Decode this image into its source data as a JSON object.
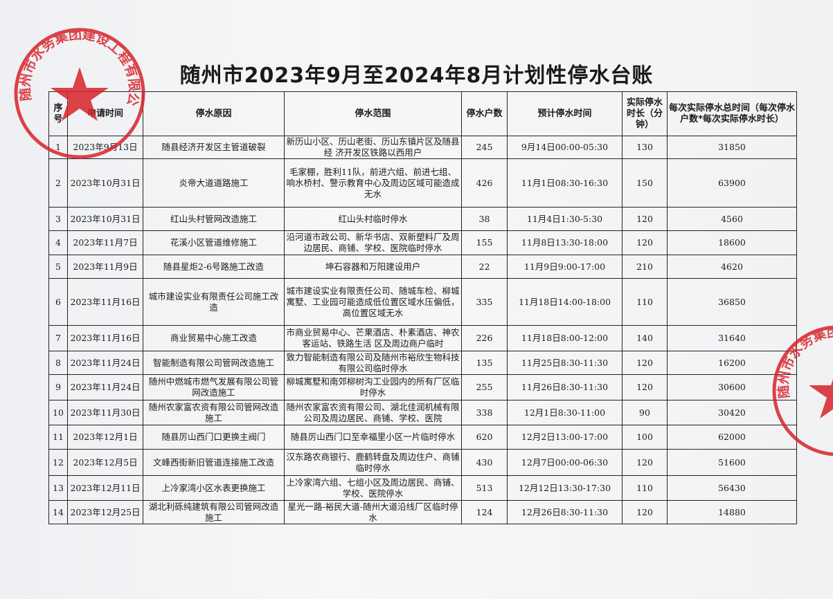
{
  "title": "随州市2023年9月至2024年8月计划性停水台账",
  "headers": [
    "序号",
    "申请时间",
    "停水原因",
    "停水范围",
    "停水户数",
    "预计停水时间",
    "实际停水时长（分钟）",
    "每次实际停水总时间（每次停水户数*每次实际停水时长）"
  ],
  "rows": [
    {
      "no": "1",
      "date": "2023年9月13日",
      "reason": "随县经济开发区主管道破裂",
      "range": "新历山小区、历山老街、历山东镇片区及随县经 济开发区铁路以西用户",
      "households": "245",
      "time": "9月14日00:00-05:30",
      "duration": "130",
      "total": "31850"
    },
    {
      "no": "2",
      "date": "2023年10月31日",
      "reason": "炎帝大道道路施工",
      "range": "毛家棚，胜利11队，前进六组、前进七组、响水桥村、警示教育中心及周边区域可能造成无水",
      "households": "426",
      "time": "11月1日08:30-16:30",
      "duration": "150",
      "total": "63900"
    },
    {
      "no": "3",
      "date": "2023年10月31日",
      "reason": "红山头村管网改造施工",
      "range": "红山头村临时停水",
      "households": "38",
      "time": "11月4日1:30-5:30",
      "duration": "120",
      "total": "4560"
    },
    {
      "no": "4",
      "date": "2023年11月7日",
      "reason": "花溪小区管道维修施工",
      "range": "沿河道市政公司、新华书店、双新塑料厂及周边居民、商铺、学校、医院临时停水",
      "households": "155",
      "time": "11月8日13:30-18:00",
      "duration": "120",
      "total": "18600"
    },
    {
      "no": "5",
      "date": "2023年11月9日",
      "reason": "随县星炬2-6号路施工改造",
      "range": "坤石容器和万阳建设用户",
      "households": "22",
      "time": "11月9日9:00-17:00",
      "duration": "210",
      "total": "4620"
    },
    {
      "no": "6",
      "date": "2023年11月16日",
      "reason": "城市建设实业有限责任公司施工改造",
      "range": "城市建设实业有限责任公司、随城车检、柳城寓墅、工业园可能造成低位置区域水压偏低，高位置区域无水",
      "households": "335",
      "time": "11月18日14:00-18:00",
      "duration": "110",
      "total": "36850"
    },
    {
      "no": "7",
      "date": "2023年11月16日",
      "reason": "商业贸易中心施工改造",
      "range": "市商业贸易中心、芒果酒店、朴素酒店、神农客运站、铁路生活 区及周边商户临时",
      "households": "226",
      "time": "11月18日8:00-12:00",
      "duration": "140",
      "total": "31640"
    },
    {
      "no": "8",
      "date": "2023年11月24日",
      "reason": "智能制造有限公司管网改造施工",
      "range": "致力智能制造有限公司及随州市裕欣生物科技有限公司临时停水",
      "households": "135",
      "time": "11月25日8:30-11:30",
      "duration": "120",
      "total": "16200"
    },
    {
      "no": "9",
      "date": "2023年11月24日",
      "reason": "随州中燃城市燃气发展有限公司管网改造施工",
      "range": "柳城寓墅和南郊柳树沟工业园内的所有厂区临时停水",
      "households": "255",
      "time": "11月26日8:30-11:30",
      "duration": "120",
      "total": "30600"
    },
    {
      "no": "10",
      "date": "2023年11月30日",
      "reason": "随州农家富农资有限公司管网改造施工",
      "range": "随州农家富农资有限公司、湖北佳润机械有限公司及周边居民、商铺、学校、医院",
      "households": "338",
      "time": "12月1日8:30-11:00",
      "duration": "90",
      "total": "30420"
    },
    {
      "no": "11",
      "date": "2023年12月1日",
      "reason": "随县厉山西门口更换主阀门",
      "range": "随县厉山西门口至幸福里小区一片临时停水",
      "households": "620",
      "time": "12月2日13:00-17:00",
      "duration": "100",
      "total": "62000"
    },
    {
      "no": "12",
      "date": "2023年12月5日",
      "reason": "文峰西街新旧管道连接施工改造",
      "range": "汉东路农商银行、鹿鹤转盘及周边住户、商铺临时停水",
      "households": "430",
      "time": "12月7日00:00-06:30",
      "duration": "120",
      "total": "51600"
    },
    {
      "no": "13",
      "date": "2023年12月11日",
      "reason": "上冷家湾小区水表更换施工",
      "range": "上冷家湾六组、七组小区及周边居民、商铺、学校、医院停水",
      "households": "513",
      "time": "12月12日13:30-17:30",
      "duration": "110",
      "total": "56430"
    },
    {
      "no": "14",
      "date": "2023年12月25日",
      "reason": "湖北利砾纯建筑有限公司管网改造施工",
      "range": "星光一路-裕民大道-随州大道沿线厂区临时停水",
      "households": "124",
      "time": "12月26日8:30-11:30",
      "duration": "120",
      "total": "14880"
    }
  ],
  "stamp": {
    "text": "随州市水务集团建设工程有限公司",
    "color": "#d8232a"
  }
}
